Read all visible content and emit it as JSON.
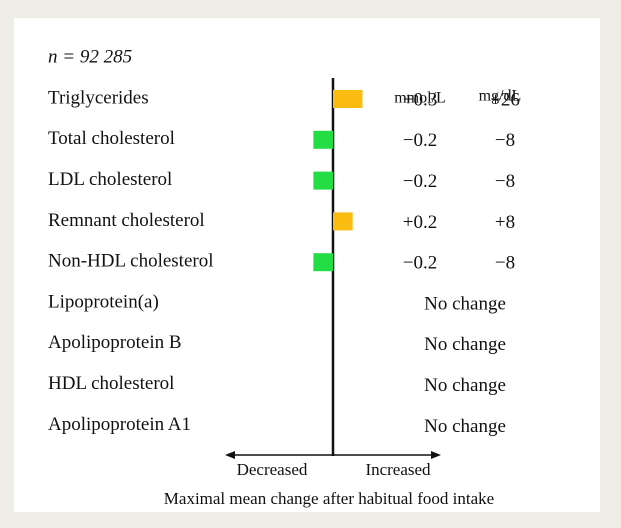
{
  "chart_data": {
    "type": "bar",
    "orientation": "horizontal",
    "title": "n = 92 285",
    "categories": [
      "Triglycerides",
      "Total cholesterol",
      "LDL cholesterol",
      "Remnant cholesterol",
      "Non-HDL cholesterol",
      "Lipoprotein(a)",
      "Apolipoprotein B",
      "HDL cholesterol",
      "Apolipoprotein A1"
    ],
    "series": [
      {
        "name": "mmol/L",
        "values": [
          0.3,
          -0.2,
          -0.2,
          0.2,
          -0.2,
          0,
          0,
          0,
          0
        ],
        "value_labels": [
          "+0.3",
          "−0.2",
          "−0.2",
          "+0.2",
          "−0.2",
          "No change",
          "No change",
          "No change",
          "No change"
        ]
      },
      {
        "name": "mg/dL",
        "values": [
          26,
          -8,
          -8,
          8,
          -8,
          0,
          0,
          0,
          0
        ],
        "value_labels": [
          "+26",
          "−8",
          "−8",
          "+8",
          "−8",
          null,
          null,
          null,
          null
        ]
      }
    ],
    "colors": {
      "increase": "#fbbc12",
      "decrease": "#22dd44"
    },
    "xlim": [
      -1.1,
      1.1
    ],
    "axis_labels": {
      "left": "Decreased",
      "right": "Increased"
    },
    "xlabel": "Maximal mean change after habitual food intake"
  }
}
